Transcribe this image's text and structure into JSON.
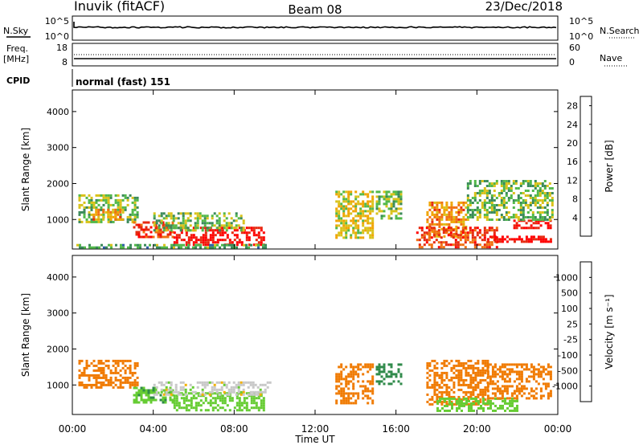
{
  "header": {
    "station": "Inuvik (fitACF)",
    "beam": "Beam 08",
    "date": "23/Dec/2018"
  },
  "panels": {
    "nsky": {
      "label": "N.Sky",
      "tick_top": "10^5",
      "tick_bottom": "10^0",
      "right_tick_top": "10^5",
      "right_tick_bottom": "10^0",
      "right_label": "N.Search"
    },
    "freq": {
      "label_line1": "Freq.",
      "label_line2": "[MHz]",
      "tick_top": "18",
      "tick_bottom": "8",
      "right_tick_top": "60",
      "right_tick_bottom": "0",
      "right_label": "Nave"
    },
    "cpid": {
      "label": "CPID",
      "text": "normal (fast) 151"
    }
  },
  "colors": {
    "power": [
      "#2222ee",
      "#2d5fa8",
      "#3a8a5a",
      "#52b84a",
      "#d9c21a",
      "#f0a400",
      "#f07010",
      "#e62a10",
      "#ff0000"
    ],
    "velocity": [
      "#1f3fb8",
      "#2f6fb0",
      "#2f8a4a",
      "#66cc33",
      "#c8c8c8",
      "#f2b000",
      "#f07a00",
      "#e84000",
      "#ff1a1a"
    ],
    "ground": "#c0c0c0"
  },
  "chart_data": [
    {
      "type": "heatmap",
      "title": "",
      "xlabel": "Time UT",
      "ylabel": "Slant Range [km]",
      "x_tick_labels": [
        "00:00",
        "04:00",
        "08:00",
        "12:00",
        "16:00",
        "20:00",
        "00:00"
      ],
      "y_tick_labels": [
        "1000",
        "2000",
        "3000",
        "4000"
      ],
      "xlim_hours": [
        0,
        24
      ],
      "ylim_km": [
        180,
        4600
      ],
      "colorbar": {
        "label": "Power [dB]",
        "ticks": [
          "4",
          "8",
          "12",
          "16",
          "20",
          "24",
          "28"
        ],
        "range": [
          0,
          30
        ]
      },
      "regions": [
        {
          "t0": 0.3,
          "t1": 3.2,
          "r0": 900,
          "r1": 1700,
          "value": 12
        },
        {
          "t0": 1.0,
          "t1": 2.5,
          "r0": 1000,
          "r1": 1300,
          "value": 20
        },
        {
          "t0": 3.0,
          "t1": 5.0,
          "r0": 500,
          "r1": 950,
          "value": 24
        },
        {
          "t0": 5.0,
          "t1": 9.5,
          "r0": 300,
          "r1": 800,
          "value": 28
        },
        {
          "t0": 4.0,
          "t1": 8.5,
          "r0": 700,
          "r1": 1200,
          "value": 12
        },
        {
          "t0": 0.2,
          "t1": 9.5,
          "r0": 200,
          "r1": 320,
          "value": 10
        },
        {
          "t0": 13.0,
          "t1": 14.8,
          "r0": 500,
          "r1": 1800,
          "value": 16
        },
        {
          "t0": 15.0,
          "t1": 16.2,
          "r0": 1000,
          "r1": 1800,
          "value": 12
        },
        {
          "t0": 17.5,
          "t1": 19.5,
          "r0": 500,
          "r1": 1500,
          "value": 20
        },
        {
          "t0": 17.0,
          "t1": 21.0,
          "r0": 250,
          "r1": 800,
          "value": 24
        },
        {
          "t0": 20.5,
          "t1": 23.7,
          "r0": 350,
          "r1": 550,
          "value": 28
        },
        {
          "t0": 21.8,
          "t1": 23.7,
          "r0": 750,
          "r1": 1000,
          "value": 28
        },
        {
          "t0": 19.5,
          "t1": 23.7,
          "r0": 1000,
          "r1": 2100,
          "value": 12
        }
      ]
    },
    {
      "type": "heatmap",
      "title": "",
      "xlabel": "Time UT",
      "ylabel": "Slant Range [km]",
      "x_tick_labels": [
        "00:00",
        "04:00",
        "08:00",
        "12:00",
        "16:00",
        "20:00",
        "00:00"
      ],
      "y_tick_labels": [
        "1000",
        "2000",
        "3000",
        "4000"
      ],
      "xlim_hours": [
        0,
        24
      ],
      "ylim_km": [
        180,
        4600
      ],
      "colorbar": {
        "label": "Velocity [m s^-1]",
        "ticks": [
          "1000",
          "500",
          "100",
          "25",
          "-25",
          "-100",
          "-500",
          "-1000"
        ]
      },
      "regions": [
        {
          "t0": 0.3,
          "t1": 3.2,
          "r0": 900,
          "r1": 1700,
          "value": -200
        },
        {
          "t0": 3.0,
          "t1": 5.0,
          "r0": 500,
          "r1": 950,
          "value": 80
        },
        {
          "t0": 5.0,
          "t1": 9.5,
          "r0": 300,
          "r1": 800,
          "value": 60
        },
        {
          "t0": 4.0,
          "t1": 9.8,
          "r0": 750,
          "r1": 1100,
          "value": 0
        },
        {
          "t0": 13.0,
          "t1": 14.8,
          "r0": 500,
          "r1": 1600,
          "value": -150
        },
        {
          "t0": 15.0,
          "t1": 16.2,
          "r0": 1000,
          "r1": 1600,
          "value": 300
        },
        {
          "t0": 17.5,
          "t1": 20.5,
          "r0": 450,
          "r1": 1700,
          "value": -200
        },
        {
          "t0": 18.0,
          "t1": 22.0,
          "r0": 300,
          "r1": 650,
          "value": 60
        },
        {
          "t0": 20.5,
          "t1": 23.7,
          "r0": 600,
          "r1": 1600,
          "value": -200
        }
      ]
    }
  ]
}
